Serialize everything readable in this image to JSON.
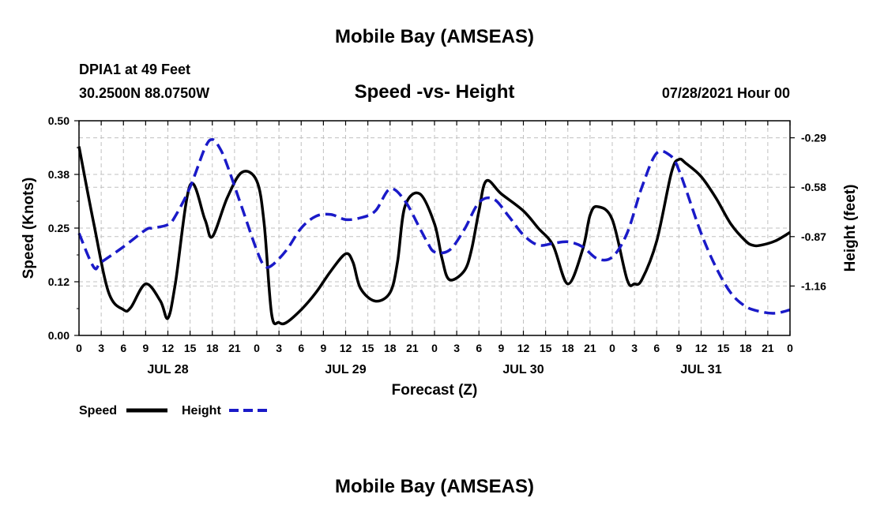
{
  "header": {
    "title": "Mobile Bay (AMSEAS)",
    "station": "DPIA1 at 49 Feet",
    "location": "30.2500N  88.0750W",
    "subtitle": "Speed -vs- Height",
    "forecast_time": "07/28/2021 Hour 00",
    "footer_title": "Mobile Bay (AMSEAS)"
  },
  "legend": {
    "speed_label": "Speed",
    "height_label": "Height"
  },
  "colors": {
    "speed": "#000000",
    "height": "#1a1ac8",
    "grid": "#c0c0c0"
  },
  "chart_data": {
    "type": "line",
    "xlabel": "Forecast (Z)",
    "ylabel": "Speed (Knots)",
    "y2label": "Height (feet)",
    "x_range_hours": [
      0,
      96
    ],
    "x_tick_step_hours": 3,
    "x_tick_labels": [
      "0",
      "3",
      "6",
      "9",
      "12",
      "15",
      "18",
      "21",
      "0",
      "3",
      "6",
      "9",
      "12",
      "15",
      "18",
      "21",
      "0",
      "3",
      "6",
      "9",
      "12",
      "15",
      "18",
      "21",
      "0",
      "3",
      "6",
      "9",
      "12",
      "15",
      "18",
      "21",
      "0"
    ],
    "day_labels": [
      {
        "label": "JUL 28",
        "hour": 12
      },
      {
        "label": "JUL 29",
        "hour": 36
      },
      {
        "label": "JUL 30",
        "hour": 60
      },
      {
        "label": "JUL 31",
        "hour": 84
      }
    ],
    "ylim": [
      0.0,
      0.5
    ],
    "y_ticks": [
      "0.00",
      "0.12",
      "0.25",
      "0.38",
      "0.50"
    ],
    "y2lim": [
      -1.45,
      -0.19
    ],
    "y2_ticks": [
      "-1.16",
      "-0.87",
      "-0.58",
      "-0.29"
    ],
    "grid": true,
    "series": [
      {
        "name": "Speed",
        "axis": "left",
        "style": "solid",
        "x": [
          0,
          2,
          4,
          6,
          7,
          9,
          11,
          12,
          13,
          15,
          17,
          18,
          20,
          22,
          24,
          25,
          26,
          27,
          28,
          30,
          32,
          34,
          36,
          37,
          38,
          40,
          42,
          43,
          44,
          46,
          48,
          49,
          50,
          52,
          53,
          54,
          55,
          57,
          60,
          62,
          64,
          66,
          68,
          69,
          70,
          72,
          74,
          75,
          76,
          78,
          80,
          81,
          82,
          84,
          86,
          88,
          90,
          91,
          92,
          94,
          96
        ],
        "values": [
          0.44,
          0.26,
          0.1,
          0.06,
          0.065,
          0.12,
          0.08,
          0.04,
          0.12,
          0.35,
          0.27,
          0.23,
          0.32,
          0.38,
          0.36,
          0.26,
          0.05,
          0.03,
          0.03,
          0.06,
          0.1,
          0.15,
          0.19,
          0.17,
          0.11,
          0.08,
          0.1,
          0.17,
          0.3,
          0.33,
          0.26,
          0.18,
          0.13,
          0.15,
          0.2,
          0.29,
          0.36,
          0.33,
          0.29,
          0.25,
          0.21,
          0.12,
          0.2,
          0.28,
          0.3,
          0.27,
          0.13,
          0.12,
          0.13,
          0.22,
          0.38,
          0.41,
          0.4,
          0.37,
          0.32,
          0.26,
          0.22,
          0.21,
          0.21,
          0.22,
          0.24
        ]
      },
      {
        "name": "Height",
        "axis": "right",
        "style": "dashed",
        "x": [
          0,
          2,
          3,
          6,
          9,
          10,
          12,
          13,
          15,
          17,
          18,
          19,
          20,
          22,
          24,
          25,
          26,
          28,
          30,
          32,
          34,
          36,
          38,
          40,
          42,
          44,
          46,
          47,
          48,
          50,
          52,
          54,
          56,
          58,
          60,
          62,
          64,
          66,
          68,
          70,
          72,
          74,
          76,
          78,
          80,
          81,
          82,
          84,
          86,
          88,
          90,
          92,
          94,
          96
        ],
        "values": [
          -0.85,
          -1.05,
          -1.02,
          -0.93,
          -0.83,
          -0.82,
          -0.8,
          -0.75,
          -0.58,
          -0.35,
          -0.3,
          -0.35,
          -0.45,
          -0.7,
          -0.95,
          -1.04,
          -1.04,
          -0.95,
          -0.82,
          -0.75,
          -0.74,
          -0.77,
          -0.76,
          -0.72,
          -0.59,
          -0.66,
          -0.82,
          -0.9,
          -0.96,
          -0.95,
          -0.83,
          -0.67,
          -0.65,
          -0.75,
          -0.86,
          -0.92,
          -0.91,
          -0.9,
          -0.93,
          -1.0,
          -0.99,
          -0.85,
          -0.58,
          -0.38,
          -0.4,
          -0.48,
          -0.6,
          -0.85,
          -1.05,
          -1.2,
          -1.28,
          -1.31,
          -1.32,
          -1.3
        ]
      }
    ]
  }
}
